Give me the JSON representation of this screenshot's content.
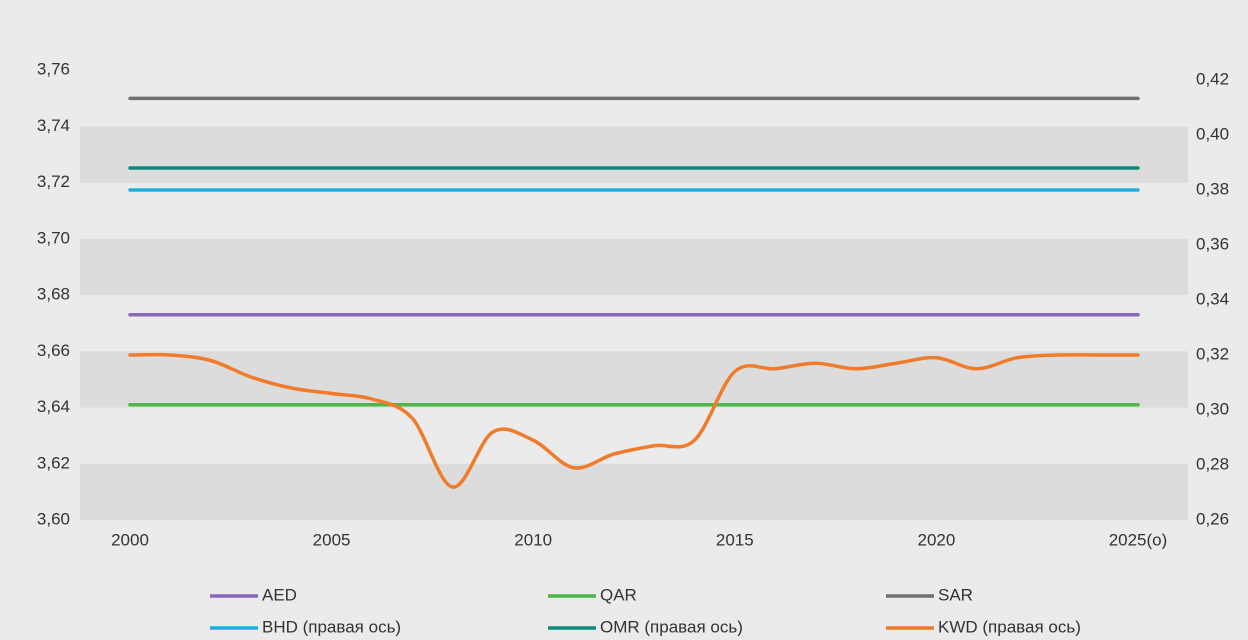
{
  "chart_data": {
    "type": "line",
    "categories": [
      "2000",
      null,
      null,
      null,
      null,
      "2005",
      null,
      null,
      null,
      null,
      "2010",
      null,
      null,
      null,
      null,
      "2015",
      null,
      null,
      null,
      null,
      "2020",
      null,
      null,
      null,
      null,
      "2025(о)"
    ],
    "ylim": [
      3.6,
      3.78
    ],
    "yticks": [
      {
        "value": 3.6,
        "label": "3,60"
      },
      {
        "value": 3.62,
        "label": "3,62"
      },
      {
        "value": 3.64,
        "label": "3,64"
      },
      {
        "value": 3.66,
        "label": "3,66"
      },
      {
        "value": 3.68,
        "label": "3,68"
      },
      {
        "value": 3.7,
        "label": "3,70"
      },
      {
        "value": 3.72,
        "label": "3,72"
      },
      {
        "value": 3.74,
        "label": "3,74"
      },
      {
        "value": 3.76,
        "label": "3,76"
      }
    ],
    "y2lim": [
      0.26,
      0.444
    ],
    "y2ticks": [
      {
        "value": 0.26,
        "label": "0,26"
      },
      {
        "value": 0.28,
        "label": "0,28"
      },
      {
        "value": 0.3,
        "label": "0,30"
      },
      {
        "value": 0.32,
        "label": "0,32"
      },
      {
        "value": 0.34,
        "label": "0,34"
      },
      {
        "value": 0.36,
        "label": "0,36"
      },
      {
        "value": 0.38,
        "label": "0,38"
      },
      {
        "value": 0.4,
        "label": "0,40"
      },
      {
        "value": 0.42,
        "label": "0,42"
      }
    ],
    "series": [
      {
        "name": "AED",
        "color": "#8a68b8",
        "values": [
          3.673,
          3.673,
          3.673,
          3.673,
          3.673,
          3.673,
          3.673,
          3.673,
          3.673,
          3.673,
          3.673,
          3.673,
          3.673,
          3.673,
          3.673,
          3.673,
          3.673,
          3.673,
          3.673,
          3.673,
          3.673,
          3.673,
          3.673,
          3.673,
          3.673,
          3.673
        ]
      },
      {
        "name": "QAR",
        "color": "#4cb748",
        "values": [
          3.641,
          3.641,
          3.641,
          3.641,
          3.641,
          3.641,
          3.641,
          3.641,
          3.641,
          3.641,
          3.641,
          3.641,
          3.641,
          3.641,
          3.641,
          3.641,
          3.641,
          3.641,
          3.641,
          3.641,
          3.641,
          3.641,
          3.641,
          3.641,
          3.641,
          3.641
        ]
      },
      {
        "name": "SAR",
        "color": "#707070",
        "values": [
          3.75,
          3.75,
          3.75,
          3.75,
          3.75,
          3.75,
          3.75,
          3.75,
          3.75,
          3.75,
          3.75,
          3.75,
          3.75,
          3.75,
          3.75,
          3.75,
          3.75,
          3.75,
          3.75,
          3.75,
          3.75,
          3.75,
          3.75,
          3.75,
          3.75,
          3.75
        ]
      },
      {
        "name": "BHD (правая ось)",
        "color": "#1ab0e2",
        "axis": "y2",
        "values": [
          0.38,
          0.38,
          0.38,
          0.38,
          0.38,
          0.38,
          0.38,
          0.38,
          0.38,
          0.38,
          0.38,
          0.38,
          0.38,
          0.38,
          0.38,
          0.38,
          0.38,
          0.38,
          0.38,
          0.38,
          0.38,
          0.38,
          0.38,
          0.38,
          0.38,
          0.38
        ]
      },
      {
        "name": "OMR (правая ось)",
        "color": "#0f8a7e",
        "axis": "y2",
        "values": [
          0.388,
          0.388,
          0.388,
          0.388,
          0.388,
          0.388,
          0.388,
          0.388,
          0.388,
          0.388,
          0.388,
          0.388,
          0.388,
          0.388,
          0.388,
          0.388,
          0.388,
          0.388,
          0.388,
          0.388,
          0.388,
          0.388,
          0.388,
          0.388,
          0.388,
          0.388
        ]
      },
      {
        "name": "KWD (правая ось)",
        "color": "#f07b2a",
        "axis": "y2",
        "values": [
          0.32,
          0.32,
          0.318,
          0.312,
          0.308,
          0.306,
          0.304,
          0.297,
          0.272,
          0.292,
          0.289,
          0.279,
          0.284,
          0.287,
          0.289,
          0.314,
          0.315,
          0.317,
          0.315,
          0.317,
          0.319,
          0.315,
          0.319,
          0.32,
          0.32,
          0.32
        ]
      }
    ],
    "legend": "bottom"
  }
}
